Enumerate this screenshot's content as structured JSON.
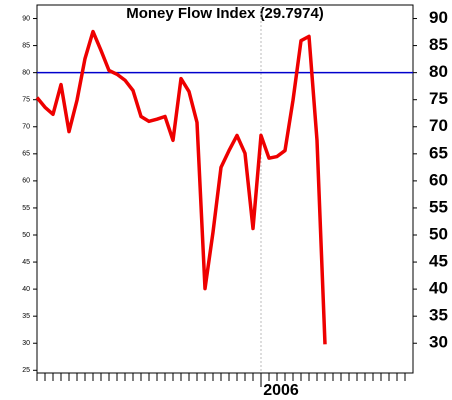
{
  "chart_data": {
    "type": "line",
    "title": "Money Flow Index (29.7974)",
    "categories": [
      null,
      null,
      null,
      null,
      null,
      null,
      null,
      null,
      null,
      null,
      null,
      null,
      null,
      null,
      null,
      null,
      null,
      null,
      null,
      null,
      null,
      null,
      null,
      null,
      null,
      null,
      null,
      null,
      "2006",
      null,
      null,
      null,
      null,
      null,
      null,
      null,
      null,
      null,
      null,
      null,
      null,
      null,
      null,
      null,
      null,
      null,
      null
    ],
    "series": [
      {
        "color": "#ee0000",
        "values": [
          75.4,
          73.6,
          72.3,
          77.8,
          69.1,
          74.9,
          82.6,
          87.6,
          84.1,
          80.4,
          79.7,
          78.6,
          76.7,
          71.9,
          71.0,
          71.4,
          71.9,
          67.5,
          78.9,
          76.5,
          70.8,
          40.1,
          50.5,
          62.5,
          65.6,
          68.4,
          65.1,
          51.2,
          68.4,
          64.2,
          64.5,
          65.6,
          74.9,
          85.9,
          86.7,
          67.5,
          29.7974,
          null,
          null,
          null,
          null,
          null,
          null,
          null,
          null,
          null,
          null
        ]
      }
    ],
    "ylim": [
      24.5,
      92.5
    ],
    "yticks": [
      25,
      30,
      35,
      40,
      45,
      50,
      55,
      60,
      65,
      70,
      75,
      80,
      85,
      90
    ],
    "y2lim": [
      24.5,
      92.5
    ],
    "y2ticks": [
      30,
      35,
      40,
      45,
      50,
      55,
      60,
      65,
      70,
      75,
      80,
      85,
      90
    ],
    "reference_line": 80,
    "reference_color": "#0000cc"
  }
}
